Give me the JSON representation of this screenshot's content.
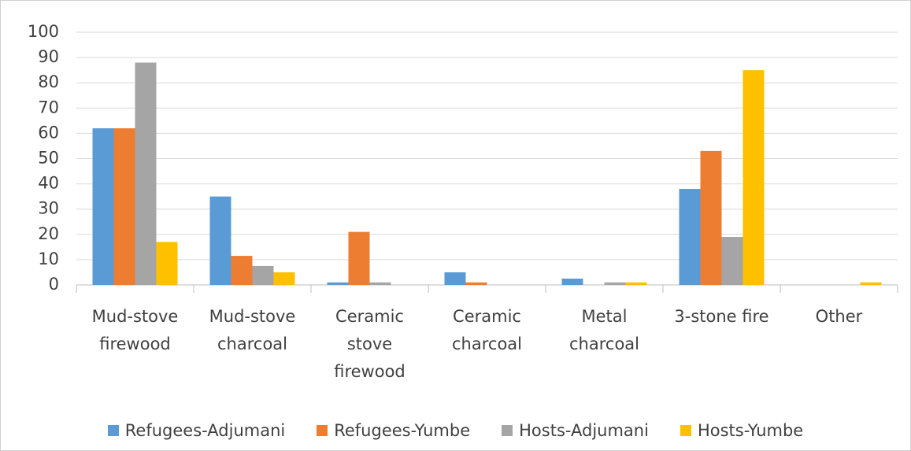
{
  "chart_data": {
    "type": "bar",
    "categories": [
      "Mud-stove firewood",
      "Mud-stove charcoal",
      "Ceramic stove firewood",
      "Ceramic charcoal",
      "Metal charcoal",
      "3-stone fire",
      "Other"
    ],
    "series": [
      {
        "name": "Refugees-Adjumani",
        "color": "#5b9bd5",
        "values": [
          62,
          35,
          1,
          5,
          2.5,
          38,
          0
        ]
      },
      {
        "name": "Refugees-Yumbe",
        "color": "#ed7d31",
        "values": [
          62,
          11.5,
          21,
          1,
          0,
          53,
          0
        ]
      },
      {
        "name": "Hosts-Adjumani",
        "color": "#a5a5a5",
        "values": [
          88,
          7.5,
          1,
          0,
          1,
          19,
          0
        ]
      },
      {
        "name": "Hosts-Yumbe",
        "color": "#ffc000",
        "values": [
          17,
          5,
          0,
          0,
          1,
          85,
          1
        ]
      }
    ],
    "ylim": [
      0,
      100
    ],
    "yticks": [
      0,
      10,
      20,
      30,
      40,
      50,
      60,
      70,
      80,
      90,
      100
    ],
    "grid": true,
    "legend": "bottom"
  }
}
